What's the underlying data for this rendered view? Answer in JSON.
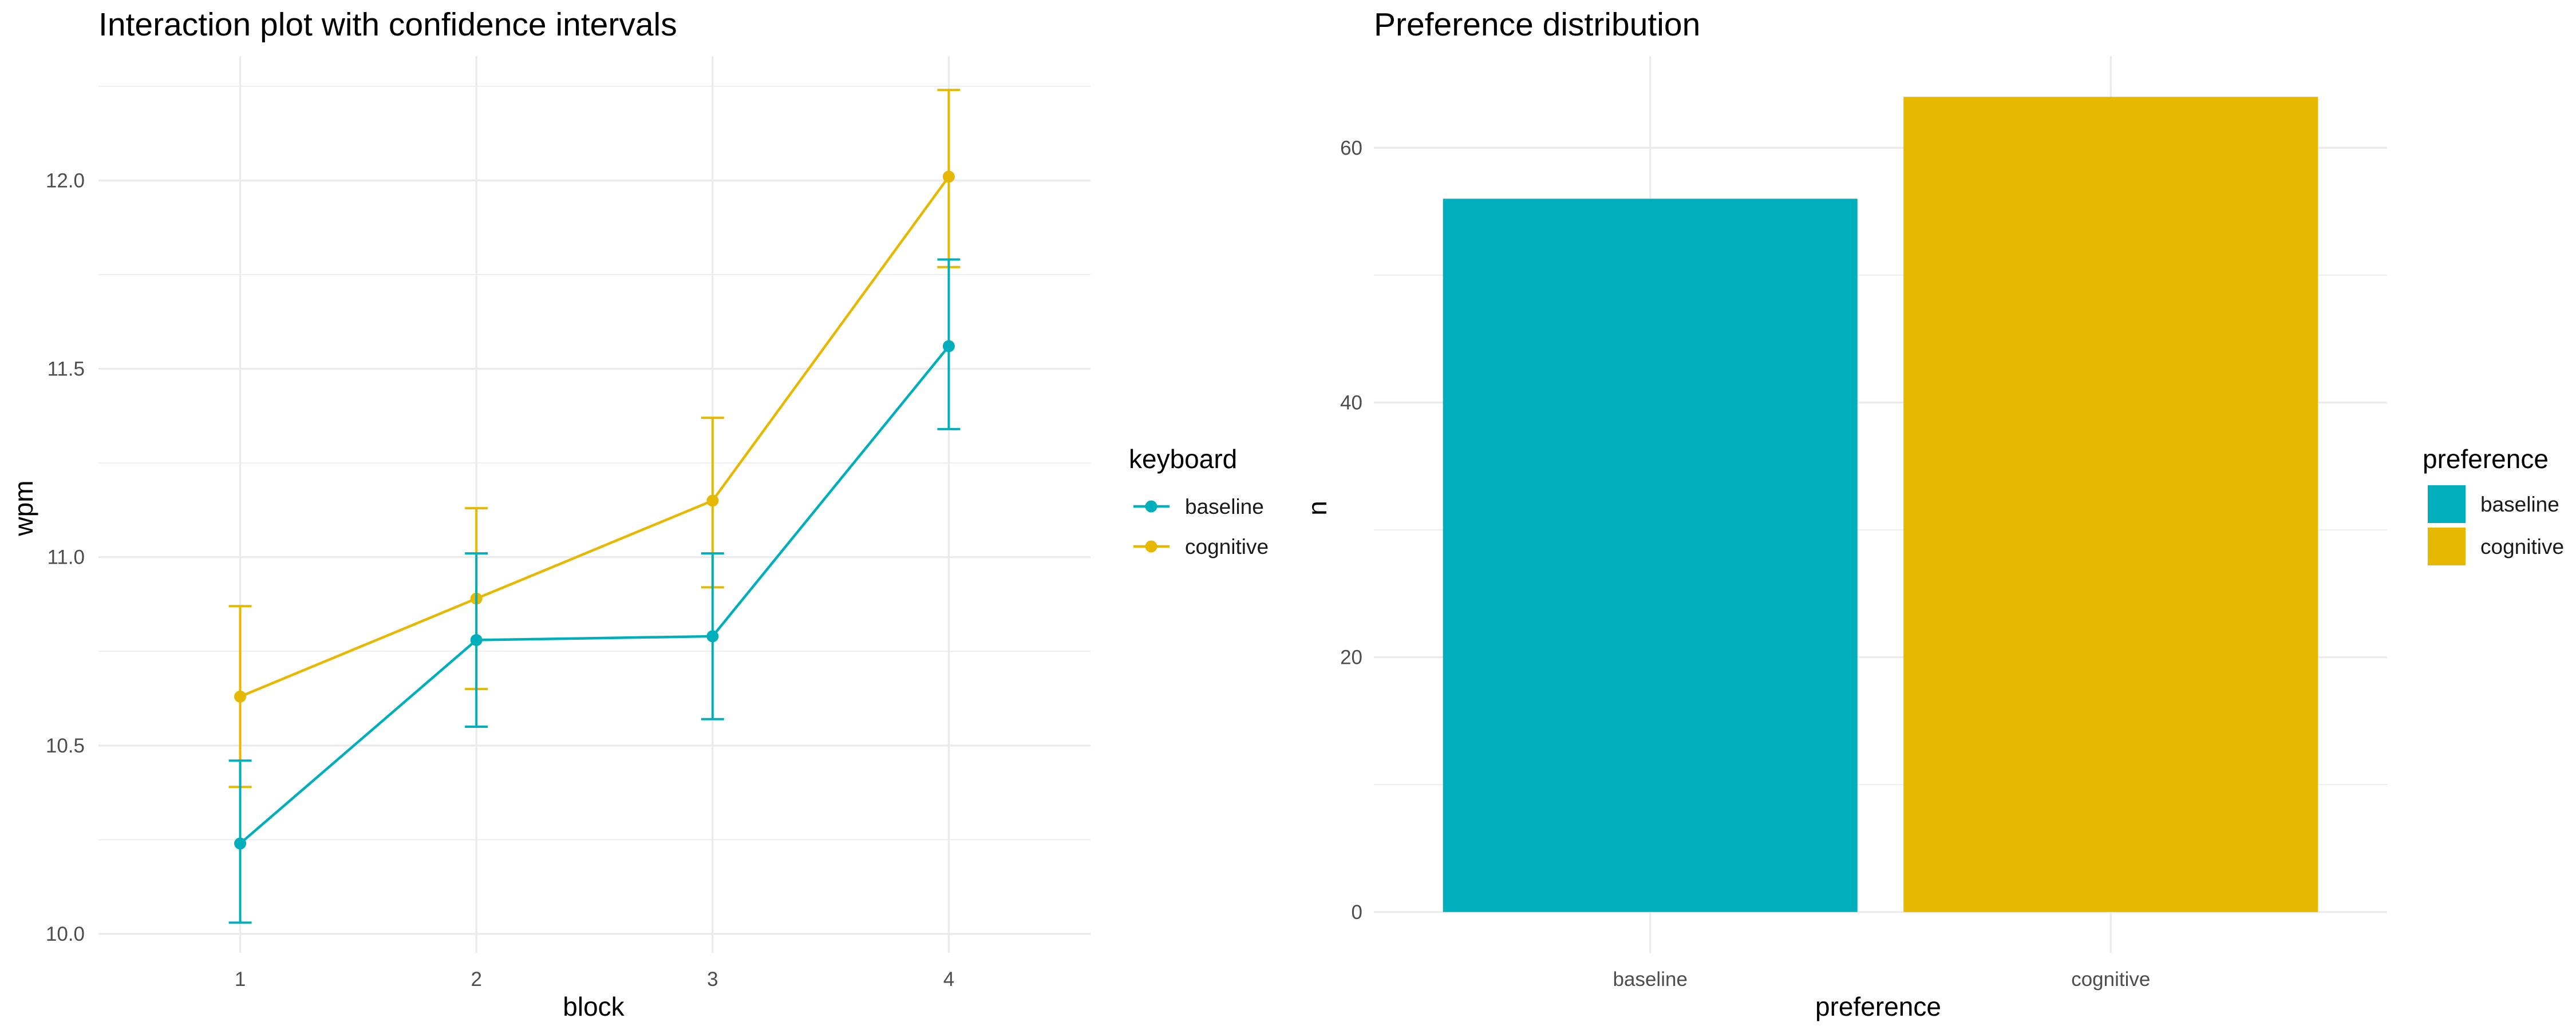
{
  "chart_data": [
    {
      "type": "line",
      "title": "Interaction plot with confidence intervals",
      "xlabel": "block",
      "ylabel": "wpm",
      "categories": [
        "1",
        "2",
        "3",
        "4"
      ],
      "ylim": [
        9.95,
        12.33
      ],
      "y_ticks": [
        "10.0",
        "10.5",
        "11.0",
        "11.5",
        "12.0"
      ],
      "y_tick_values": [
        10.0,
        10.5,
        11.0,
        11.5,
        12.0
      ],
      "grid": true,
      "error_bars": true,
      "legend": {
        "title": "keyboard",
        "position": "right"
      },
      "series": [
        {
          "name": "baseline",
          "color": "#00AFBB",
          "values": [
            10.24,
            10.78,
            10.79,
            11.56
          ],
          "lower": [
            10.03,
            10.55,
            10.57,
            11.34
          ],
          "upper": [
            10.46,
            11.01,
            11.01,
            11.79
          ]
        },
        {
          "name": "cognitive",
          "color": "#E7B800",
          "values": [
            10.63,
            10.89,
            11.15,
            12.01
          ],
          "lower": [
            10.39,
            10.65,
            10.92,
            11.77
          ],
          "upper": [
            10.87,
            11.13,
            11.37,
            12.24
          ]
        }
      ]
    },
    {
      "type": "bar",
      "title": "Preference distribution",
      "xlabel": "preference",
      "ylabel": "n",
      "categories": [
        "baseline",
        "cognitive"
      ],
      "values": [
        56,
        64
      ],
      "colors": [
        "#00AFBB",
        "#E7B800"
      ],
      "ylim": [
        -3.2,
        67.2
      ],
      "y_ticks": [
        "0",
        "20",
        "40",
        "60"
      ],
      "y_tick_values": [
        0,
        20,
        40,
        60
      ],
      "grid": true,
      "legend": {
        "title": "preference",
        "position": "right"
      }
    }
  ]
}
